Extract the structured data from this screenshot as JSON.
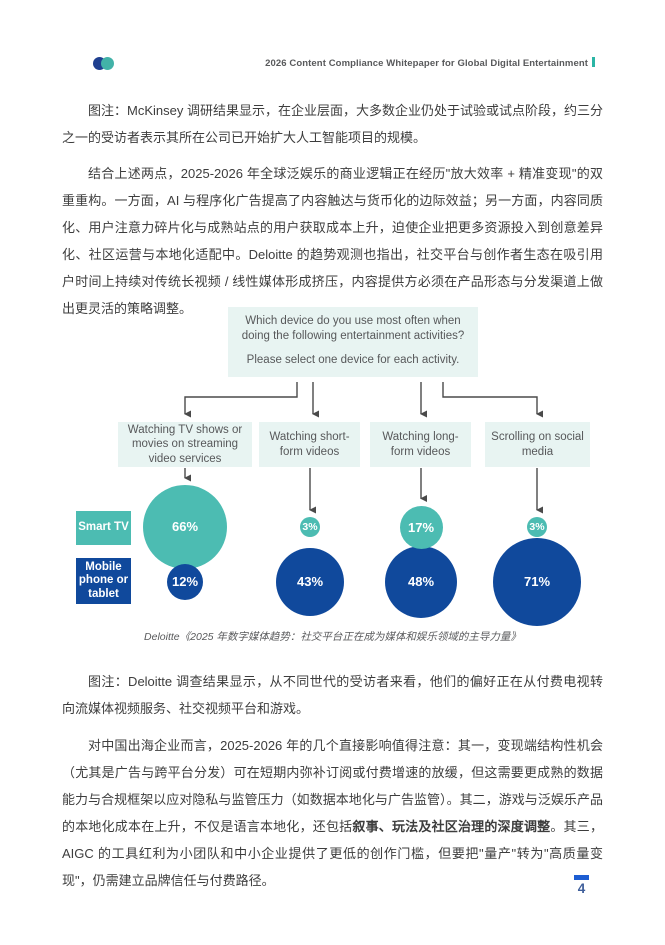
{
  "header": {
    "title": "2026 Content Compliance Whitepaper for Global Digital Entertainment"
  },
  "paragraphs": {
    "p1": "图注：McKinsey 调研结果显示，在企业层面，大多数企业仍处于试验或试点阶段，约三分之一的受访者表示其所在公司已开始扩大人工智能项目的规模。",
    "p2": "结合上述两点，2025-2026 年全球泛娱乐的商业逻辑正在经历\"放大效率 + 精准变现\"的双重重构。一方面，AI 与程序化广告提高了内容触达与货币化的边际效益；另一方面，内容同质化、用户注意力碎片化与成熟站点的用户获取成本上升，迫使企业把更多资源投入到创意差异化、社区运营与本地化适配中。Deloitte 的趋势观测也指出，社交平台与创作者生态在吸引用户时间上持续对传统长视频 / 线性媒体形成挤压，内容提供方必须在产品形态与分发渠道上做出更灵活的策略调整。",
    "p3": "图注：Deloitte 调查结果显示，从不同世代的受访者来看，他们的偏好正在从付费电视转向流媒体视频服务、社交视频平台和游戏。",
    "p4_pre": "对中国出海企业而言，2025-2026 年的几个直接影响值得注意：其一，变现端结构性机会（尤其是广告与跨平台分发）可在短期内弥补订阅或付费增速的放缓，但这需要更成熟的数据能力与合规框架以应对隐私与监管压力（如数据本地化与广告监管）。其二，游戏与泛娱乐产品的本地化成本在上升，不仅是语言本地化，还包括",
    "p4_bold": "叙事、玩法及社区治理的深度调整",
    "p4_post": "。其三，AIGC 的工具红利为小团队和中小企业提供了更低的创作门槛，但要把\"量产\"转为\"高质量变现\"，仍需建立品牌信任与付费路径。"
  },
  "chart_data": {
    "type": "bubble",
    "question_line1": "Which device do you use most often when doing the following entertainment activities?",
    "question_line2": "Please select one device for each activity.",
    "categories": [
      "Watching TV shows or movies on streaming video services",
      "Watching short-form videos",
      "Watching long-form videos",
      "Scrolling on social media"
    ],
    "series": [
      {
        "name": "Smart TV",
        "color": "#4CBCB2",
        "values": [
          66,
          3,
          17,
          3
        ],
        "labels": [
          "66%",
          "3%",
          "17%",
          "3%"
        ]
      },
      {
        "name": "Mobile phone or tablet",
        "color": "#10499C",
        "values": [
          12,
          43,
          48,
          71
        ],
        "labels": [
          "12%",
          "43%",
          "48%",
          "71%"
        ]
      }
    ],
    "legend_position": "left",
    "source_caption": "Deloitte《2025 年数字媒体趋势：社交平台正在成为媒体和娱乐领域的主导力量》"
  },
  "footer": {
    "page_number": "4"
  },
  "colors": {
    "teal": "#4CBCB2",
    "dark_blue": "#10499C",
    "mint_bg": "#E8F4F2",
    "chart_text": "#57585A",
    "body_text": "#3D3D3D",
    "footer_blue": "#1D5DD2"
  }
}
